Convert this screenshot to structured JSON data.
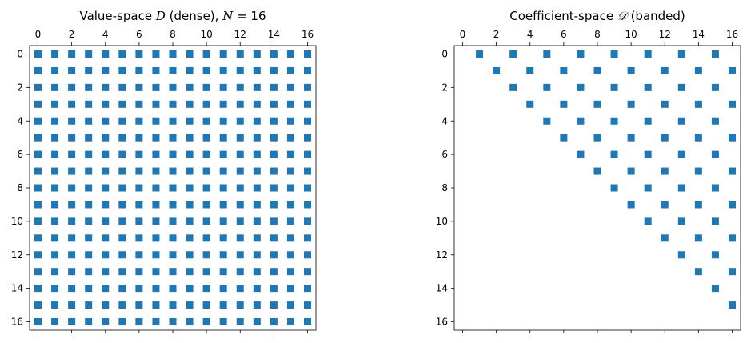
{
  "chart_data": [
    {
      "type": "scatter",
      "subtype": "sparsity-spy",
      "title_parts": [
        {
          "text": "Value-space ",
          "math": false
        },
        {
          "text": "D",
          "math": true
        },
        {
          "text": " (dense), ",
          "math": false
        },
        {
          "text": "N",
          "math": true
        },
        {
          "text": " = 16",
          "math": false
        }
      ],
      "rows": 17,
      "cols": 17,
      "xlim": [
        0,
        16
      ],
      "ylim": [
        16,
        0
      ],
      "x_ticks": [
        "0",
        "2",
        "4",
        "6",
        "8",
        "10",
        "12",
        "14",
        "16"
      ],
      "y_ticks": [
        "0",
        "2",
        "4",
        "6",
        "8",
        "10",
        "12",
        "14",
        "16"
      ],
      "x_axis_position": "top",
      "grid": false,
      "marker": "square",
      "color": "#1f77b4",
      "pattern": "dense"
    },
    {
      "type": "scatter",
      "subtype": "sparsity-spy",
      "title_parts": [
        {
          "text": "Coefficient-space ",
          "math": false
        },
        {
          "text": "𝒟",
          "math": true
        },
        {
          "text": " (banded)",
          "math": false
        }
      ],
      "rows": 17,
      "cols": 17,
      "xlim": [
        0,
        16
      ],
      "ylim": [
        16,
        0
      ],
      "x_ticks": [
        "0",
        "2",
        "4",
        "6",
        "8",
        "10",
        "12",
        "14",
        "16"
      ],
      "y_ticks": [
        "0",
        "2",
        "4",
        "6",
        "8",
        "10",
        "12",
        "14",
        "16"
      ],
      "x_axis_position": "top",
      "grid": false,
      "marker": "square",
      "color": "#1f77b4",
      "pattern": "nonzero where column > row and (column - row) is odd"
    }
  ]
}
